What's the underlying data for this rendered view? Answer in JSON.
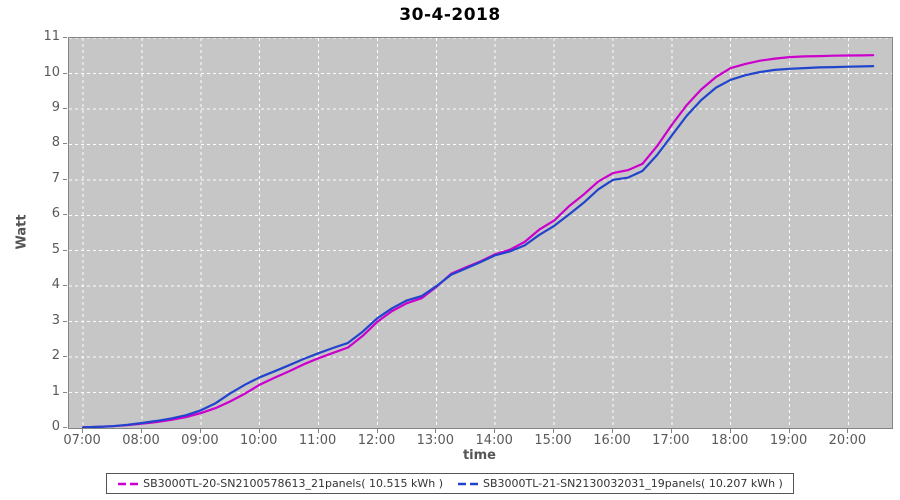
{
  "title": "30-4-2018",
  "axes": {
    "x_label": "time",
    "y_label": "Watt"
  },
  "colors": {
    "plot_background": "#c6c6c6",
    "plot_border": "#848484",
    "gridline": "#ffffff",
    "tick_text": "#5a5a5a",
    "series_1": "#cc00cc",
    "series_2": "#2244cc"
  },
  "chart_data": {
    "type": "line",
    "title": "30-4-2018",
    "xlabel": "time",
    "ylabel": "Watt",
    "xlim": [
      6.76,
      20.74
    ],
    "ylim": [
      0,
      11
    ],
    "grid": true,
    "legend_position": "bottom",
    "x_ticks": {
      "values": [
        7,
        8,
        9,
        10,
        11,
        12,
        13,
        14,
        15,
        16,
        17,
        18,
        19,
        20
      ],
      "labels": [
        "07:00",
        "08:00",
        "09:00",
        "10:00",
        "11:00",
        "12:00",
        "13:00",
        "14:00",
        "15:00",
        "16:00",
        "17:00",
        "18:00",
        "19:00",
        "20:00"
      ]
    },
    "y_ticks": {
      "values": [
        0,
        1,
        2,
        3,
        4,
        5,
        6,
        7,
        8,
        9,
        10,
        11
      ],
      "labels": [
        "0",
        "1",
        "2",
        "3",
        "4",
        "5",
        "6",
        "7",
        "8",
        "9",
        "10",
        "11"
      ]
    },
    "series": [
      {
        "name": "SB3000TL-20-SN2100578613_21panels( 10.515 kWh )",
        "color": "#cc00cc",
        "total_kwh": 10.515,
        "points": [
          [
            7.0,
            0.02
          ],
          [
            7.25,
            0.03
          ],
          [
            7.5,
            0.05
          ],
          [
            7.75,
            0.08
          ],
          [
            8.0,
            0.12
          ],
          [
            8.25,
            0.17
          ],
          [
            8.5,
            0.23
          ],
          [
            8.75,
            0.31
          ],
          [
            9.0,
            0.42
          ],
          [
            9.25,
            0.56
          ],
          [
            9.5,
            0.75
          ],
          [
            9.75,
            0.97
          ],
          [
            10.0,
            1.22
          ],
          [
            10.25,
            1.42
          ],
          [
            10.5,
            1.6
          ],
          [
            10.75,
            1.8
          ],
          [
            11.0,
            1.97
          ],
          [
            11.25,
            2.12
          ],
          [
            11.5,
            2.27
          ],
          [
            11.75,
            2.6
          ],
          [
            12.0,
            3.0
          ],
          [
            12.25,
            3.3
          ],
          [
            12.5,
            3.52
          ],
          [
            12.75,
            3.66
          ],
          [
            13.0,
            3.98
          ],
          [
            13.25,
            4.35
          ],
          [
            13.5,
            4.53
          ],
          [
            13.75,
            4.7
          ],
          [
            14.0,
            4.9
          ],
          [
            14.25,
            5.03
          ],
          [
            14.5,
            5.25
          ],
          [
            14.75,
            5.6
          ],
          [
            15.0,
            5.85
          ],
          [
            15.25,
            6.25
          ],
          [
            15.5,
            6.58
          ],
          [
            15.75,
            6.95
          ],
          [
            16.0,
            7.19
          ],
          [
            16.25,
            7.27
          ],
          [
            16.5,
            7.45
          ],
          [
            16.75,
            7.95
          ],
          [
            17.0,
            8.55
          ],
          [
            17.25,
            9.1
          ],
          [
            17.5,
            9.55
          ],
          [
            17.75,
            9.9
          ],
          [
            18.0,
            10.15
          ],
          [
            18.25,
            10.27
          ],
          [
            18.5,
            10.36
          ],
          [
            18.75,
            10.42
          ],
          [
            19.0,
            10.46
          ],
          [
            19.25,
            10.48
          ],
          [
            19.5,
            10.49
          ],
          [
            19.75,
            10.5
          ],
          [
            20.0,
            10.505
          ],
          [
            20.25,
            10.51
          ],
          [
            20.42,
            10.515
          ]
        ]
      },
      {
        "name": "SB3000TL-21-SN2130032031_19panels( 10.207 kWh )",
        "color": "#2244cc",
        "total_kwh": 10.207,
        "points": [
          [
            7.0,
            0.02
          ],
          [
            7.25,
            0.03
          ],
          [
            7.5,
            0.05
          ],
          [
            7.75,
            0.09
          ],
          [
            8.0,
            0.14
          ],
          [
            8.25,
            0.2
          ],
          [
            8.5,
            0.27
          ],
          [
            8.75,
            0.36
          ],
          [
            9.0,
            0.5
          ],
          [
            9.25,
            0.7
          ],
          [
            9.5,
            0.98
          ],
          [
            9.75,
            1.22
          ],
          [
            10.0,
            1.43
          ],
          [
            10.25,
            1.6
          ],
          [
            10.5,
            1.77
          ],
          [
            10.75,
            1.95
          ],
          [
            11.0,
            2.11
          ],
          [
            11.25,
            2.26
          ],
          [
            11.5,
            2.4
          ],
          [
            11.75,
            2.72
          ],
          [
            12.0,
            3.1
          ],
          [
            12.25,
            3.38
          ],
          [
            12.5,
            3.6
          ],
          [
            12.75,
            3.72
          ],
          [
            13.0,
            4.0
          ],
          [
            13.25,
            4.32
          ],
          [
            13.5,
            4.5
          ],
          [
            13.75,
            4.68
          ],
          [
            14.0,
            4.87
          ],
          [
            14.25,
            4.98
          ],
          [
            14.5,
            5.15
          ],
          [
            14.75,
            5.45
          ],
          [
            15.0,
            5.7
          ],
          [
            15.25,
            6.02
          ],
          [
            15.5,
            6.35
          ],
          [
            15.75,
            6.73
          ],
          [
            16.0,
            7.0
          ],
          [
            16.25,
            7.06
          ],
          [
            16.5,
            7.25
          ],
          [
            16.75,
            7.7
          ],
          [
            17.0,
            8.25
          ],
          [
            17.25,
            8.8
          ],
          [
            17.5,
            9.25
          ],
          [
            17.75,
            9.6
          ],
          [
            18.0,
            9.82
          ],
          [
            18.25,
            9.95
          ],
          [
            18.5,
            10.04
          ],
          [
            18.75,
            10.1
          ],
          [
            19.0,
            10.13
          ],
          [
            19.25,
            10.15
          ],
          [
            19.5,
            10.17
          ],
          [
            19.75,
            10.18
          ],
          [
            20.0,
            10.19
          ],
          [
            20.25,
            10.2
          ],
          [
            20.42,
            10.207
          ]
        ]
      }
    ]
  }
}
